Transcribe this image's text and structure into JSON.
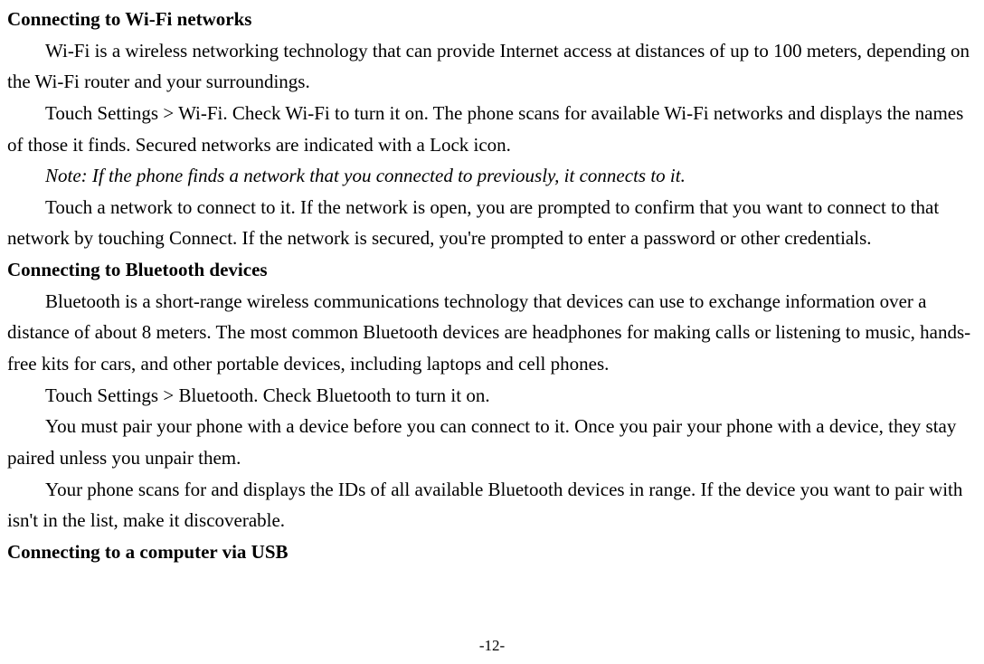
{
  "sections": {
    "wifi": {
      "heading": "Connecting to Wi-Fi networks",
      "p1": "Wi-Fi is a wireless networking technology that can provide Internet access at distances of up to 100 meters, depending on the Wi-Fi router and your surroundings.",
      "p2": "Touch Settings > Wi-Fi. Check Wi-Fi to turn it on. The phone scans for available Wi-Fi networks and displays the names of those it finds. Secured networks are indicated with a Lock icon.",
      "note": "Note: If the phone finds a network that you connected to previously, it connects to it.",
      "p3": "Touch a network to connect to it. If the network is open, you are prompted to confirm that you want to connect to that network by touching Connect. If the network is secured, you're prompted to enter a password or other credentials."
    },
    "bluetooth": {
      "heading": "Connecting to Bluetooth devices",
      "p1": "Bluetooth is a short-range wireless communications technology that devices can use to exchange information over a distance of about 8 meters. The most common Bluetooth devices are headphones for making calls or listening to music, hands-free kits for cars, and other portable devices, including laptops and cell phones.",
      "p2": "Touch Settings > Bluetooth. Check Bluetooth to turn it on.",
      "p3": "You must pair your phone with a device before you can connect to it. Once you pair your phone with a device, they stay paired unless you unpair them.",
      "p4": "Your phone scans for and displays the IDs of all available Bluetooth devices in range. If the device you want to pair with isn't in the list, make it discoverable."
    },
    "usb": {
      "heading": "Connecting to a computer via USB"
    }
  },
  "page_number": "-12-"
}
